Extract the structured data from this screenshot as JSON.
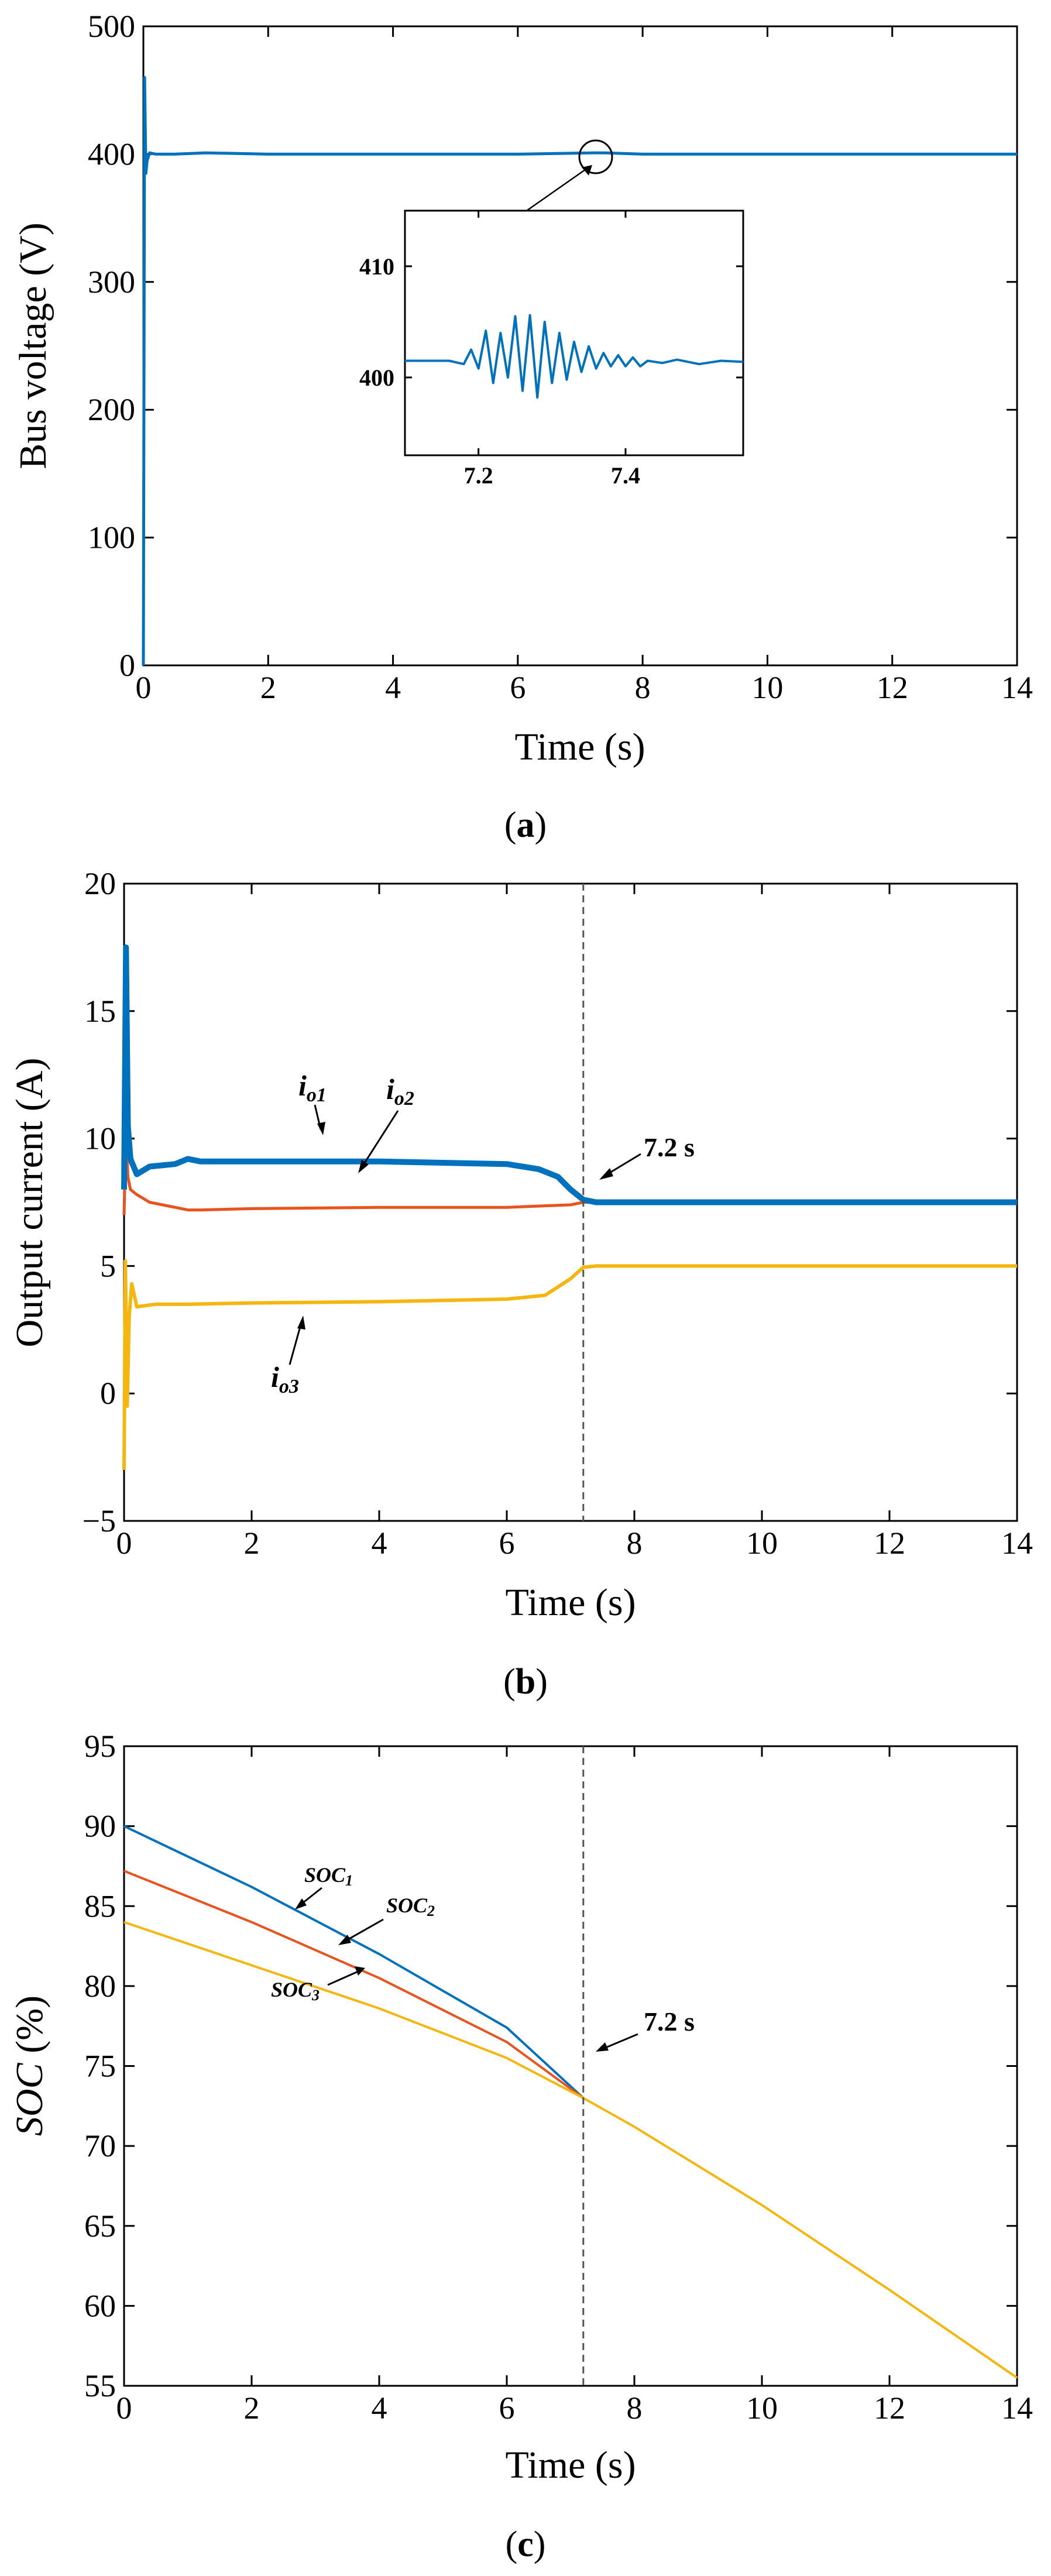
{
  "colors": {
    "blue": "#0072BD",
    "orange": "#E8531F",
    "yellow": "#F5B70F",
    "axis": "#000000"
  },
  "chart_data": [
    {
      "type": "line",
      "panel_label": "a",
      "title": "",
      "xlabel": "Time (s)",
      "ylabel": "Bus voltage (V)",
      "xlim": [
        0,
        14
      ],
      "ylim": [
        0,
        500
      ],
      "xticks": [
        0,
        2,
        4,
        6,
        8,
        10,
        12,
        14
      ],
      "yticks": [
        0,
        100,
        200,
        300,
        400,
        500
      ],
      "series": [
        {
          "name": "Bus voltage",
          "color": "#0072BD",
          "x": [
            0,
            0.02,
            0.04,
            0.06,
            0.1,
            0.2,
            0.5,
            1,
            2,
            4,
            6,
            7.2,
            7.4,
            8,
            10,
            12,
            14
          ],
          "y": [
            0,
            460,
            385,
            395,
            401,
            400,
            400,
            401,
            400,
            400,
            400,
            401,
            401,
            400,
            400,
            400,
            400
          ]
        }
      ],
      "inset": {
        "xlim": [
          7.1,
          7.56
        ],
        "ylim": [
          393,
          415
        ],
        "xticks": [
          7.2,
          7.4
        ],
        "yticks": [
          400,
          410
        ],
        "series": {
          "x": [
            7.1,
            7.16,
            7.18,
            7.19,
            7.2,
            7.21,
            7.22,
            7.23,
            7.24,
            7.25,
            7.26,
            7.27,
            7.28,
            7.29,
            7.3,
            7.31,
            7.32,
            7.33,
            7.34,
            7.35,
            7.36,
            7.37,
            7.38,
            7.39,
            7.4,
            7.41,
            7.42,
            7.43,
            7.45,
            7.47,
            7.5,
            7.53,
            7.56
          ],
          "y": [
            401.5,
            401.5,
            401.2,
            402.5,
            400.8,
            404.2,
            399.5,
            404,
            400,
            405.5,
            398.8,
            405.6,
            398.2,
            405,
            399.5,
            404,
            399.8,
            403.2,
            400.5,
            402.8,
            400.8,
            402.2,
            401,
            402,
            401,
            401.8,
            401,
            401.5,
            401.3,
            401.6,
            401.2,
            401.5,
            401.4
          ]
        }
      }
    },
    {
      "type": "line",
      "panel_label": "b",
      "title": "",
      "xlabel": "Time (s)",
      "ylabel": "Output current (A)",
      "xlim": [
        0,
        14
      ],
      "ylim": [
        -5,
        20
      ],
      "xticks": [
        0,
        2,
        4,
        6,
        8,
        10,
        12,
        14
      ],
      "yticks": [
        -5,
        0,
        5,
        10,
        15,
        20
      ],
      "vline": 7.2,
      "annotation": "7.2 s",
      "series": [
        {
          "name": "io1",
          "label_main": "i",
          "label_sub": "o1",
          "color": "#0072BD",
          "x": [
            0,
            0.03,
            0.06,
            0.1,
            0.2,
            0.4,
            0.8,
            1.0,
            1.2,
            2,
            3,
            4,
            5,
            6,
            6.5,
            6.8,
            7.0,
            7.2,
            7.4,
            8,
            10,
            12,
            14
          ],
          "y": [
            8,
            17.5,
            10.5,
            9.2,
            8.6,
            8.9,
            9.0,
            9.2,
            9.1,
            9.1,
            9.1,
            9.1,
            9.05,
            9.0,
            8.8,
            8.5,
            8.0,
            7.6,
            7.5,
            7.5,
            7.5,
            7.5,
            7.5
          ]
        },
        {
          "name": "io2",
          "label_main": "i",
          "label_sub": "o2",
          "color": "#E8531F",
          "x": [
            0,
            0.03,
            0.06,
            0.1,
            0.2,
            0.4,
            0.8,
            1.0,
            1.2,
            2,
            4,
            6,
            7.0,
            7.2,
            7.4,
            8,
            10,
            12,
            14
          ],
          "y": [
            7,
            10.5,
            8.5,
            8.0,
            7.8,
            7.5,
            7.3,
            7.2,
            7.2,
            7.25,
            7.3,
            7.3,
            7.4,
            7.5,
            7.5,
            7.5,
            7.5,
            7.5,
            7.5
          ]
        },
        {
          "name": "io3",
          "label_main": "i",
          "label_sub": "o3",
          "color": "#F5B70F",
          "x": [
            0,
            0.02,
            0.05,
            0.08,
            0.12,
            0.2,
            0.5,
            1,
            2,
            4,
            6,
            6.6,
            7.0,
            7.2,
            7.4,
            8,
            10,
            12,
            14
          ],
          "y": [
            -3,
            5.2,
            -0.5,
            3.0,
            4.3,
            3.4,
            3.5,
            3.5,
            3.55,
            3.6,
            3.7,
            3.85,
            4.5,
            4.95,
            5.0,
            5.0,
            5.0,
            5.0,
            5.0
          ]
        }
      ]
    },
    {
      "type": "line",
      "panel_label": "c",
      "title": "",
      "xlabel": "Time (s)",
      "ylabel": "SOC (%)",
      "xlim": [
        0,
        14
      ],
      "ylim": [
        55,
        95
      ],
      "xticks": [
        0,
        2,
        4,
        6,
        8,
        10,
        12,
        14
      ],
      "yticks": [
        55,
        60,
        65,
        70,
        75,
        80,
        85,
        90,
        95
      ],
      "vline": 7.2,
      "annotation": "7.2 s",
      "series": [
        {
          "name": "SOC1",
          "label_main": "SOC",
          "label_sub": "1",
          "color": "#0072BD",
          "x": [
            0,
            2,
            4,
            6,
            7.2
          ],
          "y": [
            90,
            86.2,
            82.0,
            77.4,
            73.0
          ]
        },
        {
          "name": "SOC2",
          "label_main": "SOC",
          "label_sub": "2",
          "color": "#E8531F",
          "x": [
            0,
            2,
            4,
            6,
            7.2
          ],
          "y": [
            87.2,
            84.0,
            80.5,
            76.5,
            73.0
          ]
        },
        {
          "name": "SOC3",
          "label_main": "SOC",
          "label_sub": "3",
          "color": "#F5B70F",
          "x": [
            0,
            2,
            4,
            6,
            7.2,
            8,
            10,
            12,
            14
          ],
          "y": [
            84.0,
            81.3,
            78.6,
            75.5,
            73.0,
            71.2,
            66.3,
            61.0,
            55.5
          ]
        }
      ]
    }
  ]
}
